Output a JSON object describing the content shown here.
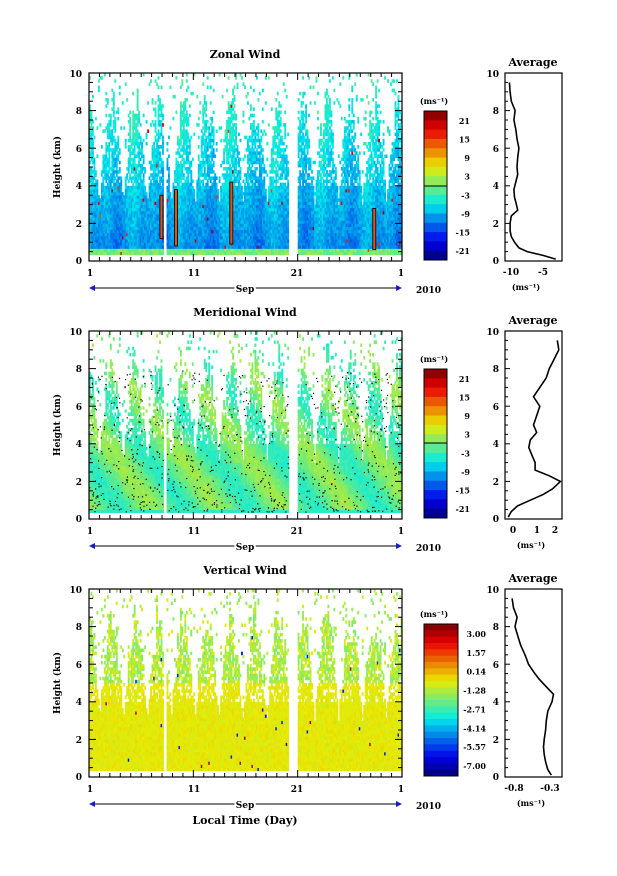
{
  "chart_data": [
    {
      "type": "heatmap",
      "title": "Zonal Wind",
      "ylabel": "Height (km)",
      "yticks": [
        "0",
        "2",
        "4",
        "6",
        "8",
        "10"
      ],
      "ylim": [
        0,
        10
      ],
      "xticks": [
        "1",
        "11",
        "21",
        "1"
      ],
      "month": "Sep",
      "year": "2010",
      "colorbar": {
        "unit": "(ms⁻¹)",
        "ticks": [
          "21",
          "15",
          "9",
          "3",
          "-3",
          "-9",
          "-15",
          "-21"
        ],
        "range": [
          -24,
          24
        ]
      },
      "profile": {
        "title": "Average",
        "xlabel": "(ms⁻¹)",
        "xticks": [
          "-10",
          "-5"
        ],
        "xlim": [
          -11,
          -2
        ],
        "yticks": [
          "0",
          "2",
          "4",
          "6",
          "8",
          "10"
        ],
        "heights": [
          0.1,
          0.3,
          0.5,
          0.7,
          1.0,
          1.3,
          1.6,
          2.0,
          2.4,
          2.7,
          3.0,
          3.4,
          3.8,
          4.2,
          4.6,
          5.0,
          5.5,
          6.0,
          6.5,
          7.0,
          7.5,
          8.0,
          8.5,
          9.0,
          9.5
        ],
        "values": [
          -3.0,
          -5.0,
          -7.5,
          -8.8,
          -9.5,
          -10.0,
          -10.2,
          -10.2,
          -10.0,
          -9.0,
          -9.2,
          -9.5,
          -9.6,
          -9.3,
          -9.0,
          -9.1,
          -9.0,
          -8.8,
          -9.1,
          -9.3,
          -9.6,
          -9.4,
          -10.0,
          -10.2,
          -10.3
        ]
      }
    },
    {
      "type": "heatmap",
      "title": "Meridional Wind",
      "ylabel": "Height (km)",
      "yticks": [
        "0",
        "2",
        "4",
        "6",
        "8",
        "10"
      ],
      "ylim": [
        0,
        10
      ],
      "xticks": [
        "1",
        "11",
        "21",
        "1"
      ],
      "month": "Sep",
      "year": "2010",
      "colorbar": {
        "unit": "(ms⁻¹)",
        "ticks": [
          "21",
          "15",
          "9",
          "3",
          "-3",
          "-9",
          "-15",
          "-21"
        ],
        "range": [
          -24,
          24
        ]
      },
      "profile": {
        "title": "Average",
        "xlabel": "(ms⁻¹)",
        "xticks": [
          "0",
          "1",
          "2"
        ],
        "xlim": [
          -0.8,
          2.8
        ],
        "yticks": [
          "0",
          "2",
          "4",
          "6",
          "8",
          "10"
        ],
        "heights": [
          0.1,
          0.4,
          0.7,
          1.0,
          1.3,
          1.6,
          2.0,
          2.3,
          2.6,
          3.0,
          3.4,
          3.8,
          4.2,
          4.6,
          5.0,
          5.5,
          6.0,
          6.5,
          7.0,
          7.5,
          8.0,
          8.5,
          9.0,
          9.5
        ],
        "values": [
          -0.6,
          -0.4,
          0.0,
          0.8,
          1.6,
          2.2,
          2.7,
          2.0,
          1.1,
          1.1,
          0.9,
          0.7,
          0.8,
          1.2,
          1.0,
          1.2,
          1.4,
          1.0,
          1.4,
          1.8,
          2.0,
          2.3,
          2.6,
          2.5
        ]
      }
    },
    {
      "type": "heatmap",
      "title": "Vertical Wind",
      "ylabel": "Height (km)",
      "xlabel": "Local Time (Day)",
      "yticks": [
        "0",
        "2",
        "4",
        "6",
        "8",
        "10"
      ],
      "ylim": [
        0,
        10
      ],
      "xticks": [
        "1",
        "11",
        "21",
        "1"
      ],
      "month": "Sep",
      "year": "2010",
      "colorbar": {
        "unit": "(ms⁻¹)",
        "ticks": [
          "3.00",
          "1.57",
          "0.14",
          "-1.28",
          "-2.71",
          "-4.14",
          "-5.57",
          "-7.00"
        ],
        "range": [
          -7.7,
          3.7
        ]
      },
      "profile": {
        "title": "Average",
        "xlabel": "(ms⁻¹)",
        "xticks": [
          "-0.8",
          "-0.3"
        ],
        "xlim": [
          -0.9,
          -0.1
        ],
        "yticks": [
          "0",
          "2",
          "4",
          "6",
          "8",
          "10"
        ],
        "heights": [
          0.1,
          0.4,
          0.8,
          1.2,
          1.6,
          2.0,
          2.5,
          3.0,
          3.5,
          4.0,
          4.4,
          4.8,
          5.2,
          5.6,
          6.0,
          6.5,
          7.0,
          7.5,
          8.0,
          8.5,
          9.0,
          9.5
        ],
        "values": [
          -0.25,
          -0.3,
          -0.33,
          -0.35,
          -0.36,
          -0.35,
          -0.33,
          -0.32,
          -0.3,
          -0.24,
          -0.22,
          -0.32,
          -0.42,
          -0.5,
          -0.57,
          -0.62,
          -0.68,
          -0.72,
          -0.76,
          -0.73,
          -0.78,
          -0.8
        ]
      }
    }
  ]
}
